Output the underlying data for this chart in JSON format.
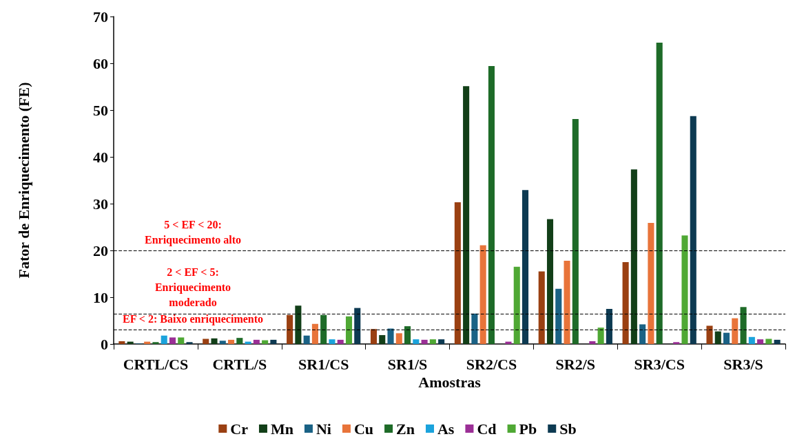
{
  "chart_data": {
    "type": "bar",
    "xlabel": "Amostras",
    "ylabel": "Fator de Enriquecimento (FE)",
    "categories": [
      "CRTL/CS",
      "CRTL/S",
      "SR1/CS",
      "SR1/S",
      "SR2/CS",
      "SR2/S",
      "SR3/CS",
      "SR3/S"
    ],
    "series": [
      {
        "name": "Cr",
        "color": "#9a4012",
        "values": [
          0.6,
          1.1,
          6.2,
          3.2,
          30.3,
          15.5,
          17.5,
          3.9
        ]
      },
      {
        "name": "Mn",
        "color": "#123f18",
        "values": [
          0.5,
          1.2,
          8.2,
          1.9,
          55.1,
          26.7,
          37.3,
          2.7
        ]
      },
      {
        "name": "Ni",
        "color": "#1a6285",
        "values": [
          0.1,
          0.7,
          1.8,
          3.3,
          6.5,
          11.8,
          4.2,
          2.4
        ]
      },
      {
        "name": "Cu",
        "color": "#e8743a",
        "values": [
          0.5,
          0.9,
          4.3,
          2.3,
          21.1,
          17.8,
          25.9,
          5.5
        ]
      },
      {
        "name": "Zn",
        "color": "#1e6b28",
        "values": [
          0.4,
          1.3,
          6.2,
          3.8,
          59.4,
          48.1,
          64.4,
          7.9
        ]
      },
      {
        "name": "As",
        "color": "#1ba3dc",
        "values": [
          1.8,
          0.5,
          1.0,
          1.0,
          null,
          null,
          null,
          1.5
        ]
      },
      {
        "name": "Cd",
        "color": "#9b2f96",
        "values": [
          1.4,
          0.9,
          0.9,
          0.9,
          0.5,
          0.6,
          0.4,
          1.0
        ]
      },
      {
        "name": "Pb",
        "color": "#4fa834",
        "values": [
          1.4,
          0.8,
          5.9,
          1.0,
          16.5,
          3.5,
          23.2,
          1.1
        ]
      },
      {
        "name": "Sb",
        "color": "#0d3a52",
        "values": [
          0.4,
          0.9,
          7.7,
          1.0,
          32.9,
          7.5,
          48.7,
          0.9
        ]
      }
    ],
    "ylim": [
      0,
      70
    ],
    "yticks": [
      0,
      10,
      20,
      30,
      40,
      50,
      60,
      70
    ],
    "grid": false,
    "legend": "bottom",
    "ref_lines": [
      {
        "axis": "y",
        "value": 3,
        "label": "EF < 2: Baixo enriquecimento",
        "color": "#000000",
        "line_style": "dashed"
      },
      {
        "axis": "y",
        "value": 6.5,
        "label": "2 < EF < 5:\nEnriquecimento\nmoderado",
        "color": "#000000",
        "line_style": "dashed"
      },
      {
        "axis": "y",
        "value": 20,
        "label": "5 < EF < 20:\nEnriquecimento alto",
        "color": "#000000",
        "line_style": "dashed"
      }
    ]
  }
}
